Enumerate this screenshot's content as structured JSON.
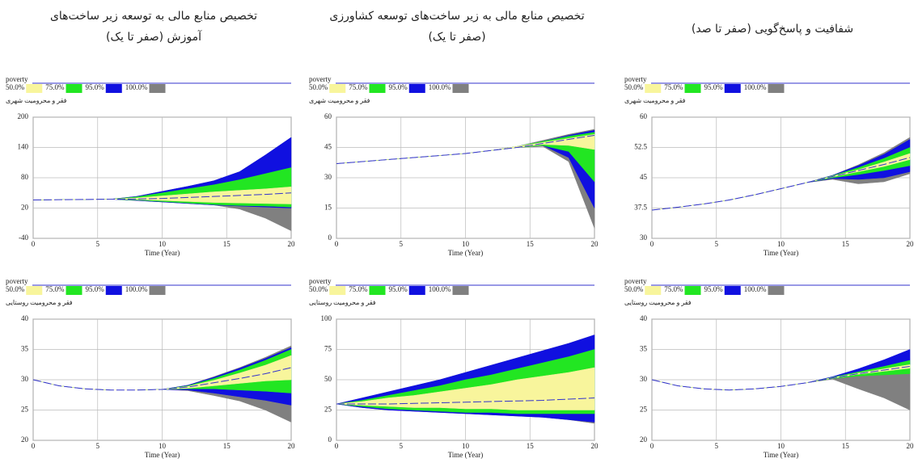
{
  "column_titles": [
    [
      "تخصیص منابع مالی به توسعه زیر ساخت‌های",
      "آموزش (صفر تا یک)"
    ],
    [
      "تخصیص منابع مالی به زیر ساخت‌های توسعه کشاورزی",
      "(صفر تا یک)"
    ],
    [
      "شفافیت و پاسخ‌گویی (صفر تا صد)"
    ]
  ],
  "chart_data": [
    {
      "type": "sensitivity",
      "variable": "poverty",
      "ylabel": "فقر و محرومیت شهری",
      "xlabel": "Time (Year)",
      "x": [
        0,
        2,
        4,
        6,
        8,
        10,
        12,
        14,
        16,
        18,
        20
      ],
      "xlim": [
        0,
        20
      ],
      "xticks": [
        0,
        5,
        10,
        15,
        20
      ],
      "ylim": [
        -40,
        200
      ],
      "yticks": [
        -40,
        20,
        80,
        140,
        200
      ],
      "grid": true,
      "line": {
        "color": "#3333cc",
        "values": [
          36,
          36.5,
          37,
          37.5,
          38,
          39,
          41,
          43,
          45,
          47,
          50
        ]
      },
      "bands": [
        {
          "name": "50.0%",
          "color": "#f8f59c",
          "lower": [
            36,
            36.5,
            37,
            37.5,
            37,
            35,
            33,
            31,
            30,
            29,
            28
          ],
          "upper": [
            36,
            36.5,
            37,
            37.5,
            40,
            44,
            48,
            52,
            55,
            58,
            62
          ]
        },
        {
          "name": "75.0%",
          "color": "#22e622",
          "lower": [
            36,
            36.5,
            37,
            37.5,
            36,
            33,
            30,
            27,
            25,
            24,
            22
          ],
          "upper": [
            36,
            36.5,
            37,
            37.5,
            42,
            50,
            58,
            66,
            76,
            88,
            100
          ]
        },
        {
          "name": "95.0%",
          "color": "#1010e0",
          "lower": [
            36,
            36.5,
            37,
            37.5,
            35,
            32,
            29,
            26,
            24,
            22,
            20
          ],
          "upper": [
            36,
            36.5,
            37,
            37.5,
            43,
            53,
            63,
            74,
            92,
            125,
            160
          ]
        },
        {
          "name": "100.0%",
          "color": "#808080",
          "lower": [
            36,
            36.5,
            37,
            37.5,
            35,
            32,
            29,
            26,
            18,
            0,
            -25
          ],
          "upper": [
            36,
            36.5,
            37,
            37.5,
            43,
            53,
            63,
            74,
            92,
            125,
            160
          ]
        }
      ]
    },
    {
      "type": "sensitivity",
      "variable": "poverty",
      "ylabel": "فقر و محرومیت شهری",
      "xlabel": "Time (Year)",
      "x": [
        0,
        2,
        4,
        6,
        8,
        10,
        12,
        14,
        16,
        18,
        20
      ],
      "xlim": [
        0,
        20
      ],
      "xticks": [
        0,
        5,
        10,
        15,
        20
      ],
      "ylim": [
        0,
        60
      ],
      "yticks": [
        0,
        15,
        30,
        45,
        60
      ],
      "grid": true,
      "line": {
        "color": "#3333cc",
        "values": [
          37,
          38,
          39,
          40,
          41,
          42,
          43.5,
          45,
          47,
          49,
          51
        ]
      },
      "bands": [
        {
          "name": "50.0%",
          "color": "#f8f59c",
          "lower": [
            37,
            38,
            39,
            40,
            41,
            42,
            43.5,
            45,
            46.5,
            46,
            44
          ],
          "upper": [
            37,
            38,
            39,
            40,
            41,
            42,
            43.5,
            45.5,
            47.5,
            49.5,
            51.5
          ]
        },
        {
          "name": "75.0%",
          "color": "#22e622",
          "lower": [
            37,
            38,
            39,
            40,
            41,
            42,
            43.5,
            45,
            46,
            43,
            28
          ],
          "upper": [
            37,
            38,
            39,
            40,
            41,
            42,
            43.5,
            45.5,
            48,
            50.5,
            52.5
          ]
        },
        {
          "name": "95.0%",
          "color": "#1010e0",
          "lower": [
            37,
            38,
            39,
            40,
            41,
            42,
            43.5,
            45,
            46,
            40,
            15
          ],
          "upper": [
            37,
            38,
            39,
            40,
            41,
            42,
            43.5,
            45.5,
            48,
            51,
            53.5
          ]
        },
        {
          "name": "100.0%",
          "color": "#808080",
          "lower": [
            37,
            38,
            39,
            40,
            41,
            42,
            43.5,
            45,
            45.5,
            38,
            5
          ],
          "upper": [
            37,
            38,
            39,
            40,
            41,
            42,
            43.5,
            45.5,
            48.5,
            51.5,
            54
          ]
        }
      ]
    },
    {
      "type": "sensitivity",
      "variable": "poverty",
      "ylabel": "فقر و محرومیت شهری",
      "xlabel": "Time (Year)",
      "x": [
        0,
        2,
        4,
        6,
        8,
        10,
        12,
        14,
        16,
        18,
        20
      ],
      "xlim": [
        0,
        20
      ],
      "xticks": [
        0,
        5,
        10,
        15,
        20
      ],
      "ylim": [
        30,
        60
      ],
      "yticks": [
        30,
        37.5,
        45,
        52.5,
        60
      ],
      "grid": true,
      "line": {
        "color": "#3333cc",
        "values": [
          37,
          37.7,
          38.5,
          39.5,
          40.8,
          42.3,
          43.8,
          45.3,
          46.8,
          48.3,
          50
        ]
      },
      "bands": [
        {
          "name": "50.0%",
          "color": "#f8f59c",
          "lower": [
            37,
            37.7,
            38.5,
            39.5,
            40.8,
            42.3,
            43.8,
            45.2,
            46.5,
            47.8,
            49.5
          ],
          "upper": [
            37,
            37.7,
            38.5,
            39.5,
            40.8,
            42.3,
            43.8,
            45.4,
            47,
            48.9,
            51
          ]
        },
        {
          "name": "75.0%",
          "color": "#22e622",
          "lower": [
            37,
            37.7,
            38.5,
            39.5,
            40.8,
            42.3,
            43.8,
            45,
            45.8,
            46.8,
            48
          ],
          "upper": [
            37,
            37.7,
            38.5,
            39.5,
            40.8,
            42.3,
            43.8,
            45.5,
            47.5,
            49.8,
            52.5
          ]
        },
        {
          "name": "95.0%",
          "color": "#1010e0",
          "lower": [
            37,
            37.7,
            38.5,
            39.5,
            40.8,
            42.3,
            43.8,
            44.8,
            44.6,
            45,
            46.5
          ],
          "upper": [
            37,
            37.7,
            38.5,
            39.5,
            40.8,
            42.3,
            43.8,
            45.6,
            48,
            50.8,
            54.5
          ]
        },
        {
          "name": "100.0%",
          "color": "#808080",
          "lower": [
            37,
            37.7,
            38.5,
            39.5,
            40.8,
            42.3,
            43.8,
            44.6,
            43.5,
            44,
            46
          ],
          "upper": [
            37,
            37.7,
            38.5,
            39.5,
            40.8,
            42.3,
            43.8,
            45.6,
            48.2,
            51.2,
            55
          ]
        }
      ]
    },
    {
      "type": "sensitivity",
      "variable": "poverty",
      "ylabel": "فقر و محرومیت روستایی",
      "xlabel": "Time (Year)",
      "x": [
        0,
        2,
        4,
        6,
        8,
        10,
        12,
        14,
        16,
        18,
        20
      ],
      "xlim": [
        0,
        20
      ],
      "xticks": [
        0,
        5,
        10,
        15,
        20
      ],
      "ylim": [
        20,
        40
      ],
      "yticks": [
        20,
        25,
        30,
        35,
        40
      ],
      "grid": true,
      "line": {
        "color": "#3333cc",
        "values": [
          30,
          29,
          28.5,
          28.3,
          28.3,
          28.4,
          28.8,
          29.5,
          30.2,
          31,
          32
        ]
      },
      "bands": [
        {
          "name": "50.0%",
          "color": "#f8f59c",
          "lower": [
            30,
            29,
            28.5,
            28.3,
            28.3,
            28.4,
            28.6,
            29,
            29.4,
            29.8,
            30
          ],
          "upper": [
            30,
            29,
            28.5,
            28.3,
            28.3,
            28.4,
            28.9,
            29.9,
            31.1,
            32.4,
            34
          ]
        },
        {
          "name": "75.0%",
          "color": "#22e622",
          "lower": [
            30,
            29,
            28.5,
            28.3,
            28.3,
            28.4,
            28.5,
            28.5,
            28.3,
            28.1,
            27.8
          ],
          "upper": [
            30,
            29,
            28.5,
            28.3,
            28.3,
            28.4,
            29,
            30.2,
            31.6,
            33.2,
            35
          ]
        },
        {
          "name": "95.0%",
          "color": "#1010e0",
          "lower": [
            30,
            29,
            28.5,
            28.3,
            28.3,
            28.4,
            28.3,
            27.8,
            27.2,
            26.6,
            25.8
          ],
          "upper": [
            30,
            29,
            28.5,
            28.3,
            28.3,
            28.4,
            29.1,
            30.4,
            31.9,
            33.5,
            35.3
          ]
        },
        {
          "name": "100.0%",
          "color": "#808080",
          "lower": [
            30,
            29,
            28.5,
            28.3,
            28.3,
            28.4,
            28.2,
            27.4,
            26.5,
            25,
            23
          ],
          "upper": [
            30,
            29,
            28.5,
            28.3,
            28.3,
            28.4,
            29.1,
            30.5,
            32,
            33.7,
            35.6
          ]
        }
      ]
    },
    {
      "type": "sensitivity",
      "variable": "poverty",
      "ylabel": "فقر و محرومیت روستایی",
      "xlabel": "Time (Year)",
      "x": [
        0,
        2,
        4,
        6,
        8,
        10,
        12,
        14,
        16,
        18,
        20
      ],
      "xlim": [
        0,
        20
      ],
      "xticks": [
        0,
        5,
        10,
        15,
        20
      ],
      "ylim": [
        0,
        100
      ],
      "yticks": [
        0,
        25,
        50,
        75,
        100
      ],
      "grid": true,
      "line": {
        "color": "#3333cc",
        "values": [
          30,
          30,
          30,
          30.5,
          31,
          31.5,
          32,
          32.5,
          33,
          34,
          35
        ]
      },
      "bands": [
        {
          "name": "50.0%",
          "color": "#f8f59c",
          "lower": [
            30,
            29,
            28,
            27,
            27,
            26,
            26,
            25,
            25,
            25,
            25
          ],
          "upper": [
            30,
            32,
            35,
            37,
            40,
            43,
            46,
            50,
            53,
            56,
            60
          ]
        },
        {
          "name": "75.0%",
          "color": "#22e622",
          "lower": [
            30,
            28,
            26,
            25,
            24,
            23,
            23,
            22,
            22,
            22,
            22
          ],
          "upper": [
            30,
            33,
            37,
            41,
            45,
            50,
            54,
            59,
            64,
            69,
            75
          ]
        },
        {
          "name": "95.0%",
          "color": "#1010e0",
          "lower": [
            30,
            27,
            25,
            24,
            23,
            22,
            21,
            20,
            19,
            17,
            15
          ],
          "upper": [
            30,
            35,
            40,
            45,
            50,
            56,
            62,
            68,
            74,
            80,
            87
          ]
        },
        {
          "name": "100.0%",
          "color": "#808080",
          "lower": [
            30,
            27,
            25,
            24,
            23,
            22,
            21,
            20,
            19,
            17,
            14
          ],
          "upper": [
            30,
            35,
            40,
            45,
            50,
            56,
            62,
            68,
            74,
            80,
            87
          ]
        }
      ]
    },
    {
      "type": "sensitivity",
      "variable": "poverty",
      "ylabel": "فقر و محرومیت روستایی",
      "xlabel": "Time (Year)",
      "x": [
        0,
        2,
        4,
        6,
        8,
        10,
        12,
        14,
        16,
        18,
        20
      ],
      "xlim": [
        0,
        20
      ],
      "xticks": [
        0,
        5,
        10,
        15,
        20
      ],
      "ylim": [
        20,
        40
      ],
      "yticks": [
        20,
        25,
        30,
        35,
        40
      ],
      "grid": true,
      "line": {
        "color": "#3333cc",
        "values": [
          30,
          29,
          28.5,
          28.3,
          28.5,
          28.9,
          29.5,
          30.3,
          31,
          31.6,
          32.2
        ]
      },
      "bands": [
        {
          "name": "50.0%",
          "color": "#f8f59c",
          "lower": [
            30,
            29,
            28.5,
            28.3,
            28.5,
            28.9,
            29.5,
            30.25,
            30.9,
            31.4,
            31.9
          ],
          "upper": [
            30,
            29,
            28.5,
            28.3,
            28.5,
            28.9,
            29.5,
            30.35,
            31.1,
            31.8,
            32.5
          ]
        },
        {
          "name": "75.0%",
          "color": "#22e622",
          "lower": [
            30,
            29,
            28.5,
            28.3,
            28.5,
            28.9,
            29.5,
            30.2,
            30.6,
            30.8,
            31
          ],
          "upper": [
            30,
            29,
            28.5,
            28.3,
            28.5,
            28.9,
            29.5,
            30.4,
            31.3,
            32.2,
            33.2
          ]
        },
        {
          "name": "95.0%",
          "color": "#1010e0",
          "lower": [
            30,
            29,
            28.5,
            28.3,
            28.5,
            28.9,
            29.5,
            30.2,
            30.8,
            31.6,
            32.5
          ],
          "upper": [
            30,
            29,
            28.5,
            28.3,
            28.5,
            28.9,
            29.5,
            30.5,
            31.8,
            33.3,
            35
          ]
        },
        {
          "name": "100.0%",
          "color": "#808080",
          "lower": [
            30,
            29,
            28.5,
            28.3,
            28.5,
            28.9,
            29.5,
            30.1,
            28.5,
            27,
            25
          ],
          "upper": [
            30,
            29,
            28.5,
            28.3,
            28.5,
            28.9,
            29.5,
            30.45,
            31.5,
            32.5,
            33.5
          ]
        }
      ]
    }
  ]
}
